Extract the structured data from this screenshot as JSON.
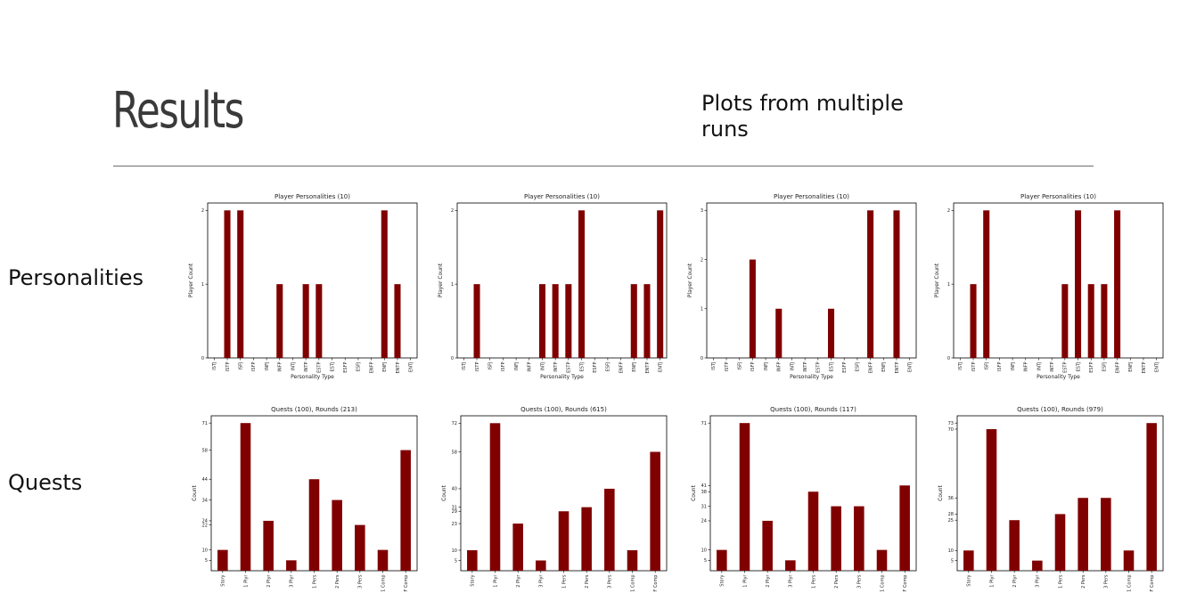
{
  "slide": {
    "title": "Results",
    "subtitle": "Plots from multiple runs",
    "row_labels": {
      "personalities": "Personalities",
      "quests": "Quests"
    }
  },
  "colors": {
    "bar": "#800000",
    "axis": "#000000",
    "title_text": "#3a3a3a"
  },
  "chart_data": [
    {
      "type": "bar",
      "title": "Player Personalities (10)",
      "xlabel": "Personality Type",
      "ylabel": "Player Count",
      "categories": [
        "ISTJ",
        "ISTP",
        "ISFJ",
        "ISFP",
        "INFJ",
        "INFP",
        "INTJ",
        "INTP",
        "ESTP",
        "ESTJ",
        "ESFP",
        "ESFJ",
        "ENFP",
        "ENFJ",
        "ENTP",
        "ENTJ"
      ],
      "values": [
        0,
        2,
        2,
        0,
        0,
        1,
        0,
        1,
        1,
        0,
        0,
        0,
        0,
        2,
        1,
        0
      ],
      "yticks": [
        0,
        1,
        2
      ],
      "ylim": [
        0,
        2.1
      ]
    },
    {
      "type": "bar",
      "title": "Player Personalities (10)",
      "xlabel": "Personality Type",
      "ylabel": "Player Count",
      "categories": [
        "ISTJ",
        "ISTP",
        "ISFJ",
        "ISFP",
        "INFJ",
        "INFP",
        "INTJ",
        "INTP",
        "ESTP",
        "ESTJ",
        "ESFP",
        "ESFJ",
        "ENFP",
        "ENFJ",
        "ENTP",
        "ENTJ"
      ],
      "values": [
        0,
        1,
        0,
        0,
        0,
        0,
        1,
        1,
        1,
        2,
        0,
        0,
        0,
        1,
        1,
        2
      ],
      "yticks": [
        0,
        1,
        2
      ],
      "ylim": [
        0,
        2.1
      ]
    },
    {
      "type": "bar",
      "title": "Player Personalities (10)",
      "xlabel": "Personality Type",
      "ylabel": "Player Count",
      "categories": [
        "ISTJ",
        "ISTP",
        "ISFJ",
        "ISFP",
        "INFJ",
        "INFP",
        "INTJ",
        "INTP",
        "ESTP",
        "ESTJ",
        "ESFP",
        "ESFJ",
        "ENFP",
        "ENFJ",
        "ENTP",
        "ENTJ"
      ],
      "values": [
        0,
        0,
        0,
        2,
        0,
        1,
        0,
        0,
        0,
        1,
        0,
        0,
        3,
        0,
        3,
        0
      ],
      "yticks": [
        0,
        1,
        2,
        3
      ],
      "ylim": [
        0,
        3.15
      ]
    },
    {
      "type": "bar",
      "title": "Player Personalities (10)",
      "xlabel": "Personality Type",
      "ylabel": "Player Count",
      "categories": [
        "ISTJ",
        "ISTP",
        "ISFJ",
        "ISFP",
        "INFJ",
        "INFP",
        "INTJ",
        "INTP",
        "ESTP",
        "ESTJ",
        "ESFP",
        "ESFJ",
        "ENFP",
        "ENFJ",
        "ENTP",
        "ENTJ"
      ],
      "values": [
        0,
        1,
        2,
        0,
        0,
        0,
        0,
        0,
        1,
        2,
        1,
        1,
        2,
        0,
        0,
        0
      ],
      "yticks": [
        0,
        1,
        2
      ],
      "ylim": [
        0,
        2.1
      ]
    },
    {
      "type": "bar",
      "title": "Quests (100), Rounds (213)",
      "xlabel": "",
      "ylabel": "Count",
      "categories": [
        "Story",
        "1 Plyr",
        "2 Plyr",
        "3 Plyr",
        "1 Pers",
        "2 Pers",
        "3 Pers",
        "1 Comp",
        "F Comp"
      ],
      "values": [
        10,
        71,
        24,
        5,
        44,
        34,
        22,
        10,
        58
      ],
      "yticks": [
        5,
        10,
        22,
        24,
        34,
        44,
        58,
        71
      ],
      "ylim": [
        0,
        74.5
      ]
    },
    {
      "type": "bar",
      "title": "Quests (100), Rounds (615)",
      "xlabel": "",
      "ylabel": "Count",
      "categories": [
        "Story",
        "1 Plyr",
        "2 Plyr",
        "3 Plyr",
        "1 Pers",
        "2 Pers",
        "3 Pers",
        "1 Comp",
        "F Comp"
      ],
      "values": [
        10,
        72,
        23,
        5,
        29,
        31,
        40,
        10,
        58
      ],
      "yticks": [
        5,
        10,
        23,
        29,
        31,
        40,
        58,
        72
      ],
      "ylim": [
        0,
        75.6
      ]
    },
    {
      "type": "bar",
      "title": "Quests (100), Rounds (117)",
      "xlabel": "",
      "ylabel": "Count",
      "categories": [
        "Story",
        "1 Plyr",
        "2 Plyr",
        "3 Plyr",
        "1 Pers",
        "2 Pers",
        "3 Pers",
        "1 Comp",
        "F Comp"
      ],
      "values": [
        10,
        71,
        24,
        5,
        38,
        31,
        31,
        10,
        41
      ],
      "yticks": [
        5,
        10,
        24,
        31,
        38,
        41,
        71
      ],
      "ylim": [
        0,
        74.5
      ]
    },
    {
      "type": "bar",
      "title": "Quests (100), Rounds (979)",
      "xlabel": "",
      "ylabel": "Count",
      "categories": [
        "Story",
        "1 Plyr",
        "2 Plyr",
        "3 Plyr",
        "1 Pers",
        "2 Pers",
        "3 Pers",
        "1 Comp",
        "F Comp"
      ],
      "values": [
        10,
        70,
        25,
        5,
        28,
        36,
        36,
        10,
        73
      ],
      "yticks": [
        5,
        10,
        25,
        28,
        36,
        70,
        73
      ],
      "ylim": [
        0,
        76.6
      ]
    }
  ]
}
